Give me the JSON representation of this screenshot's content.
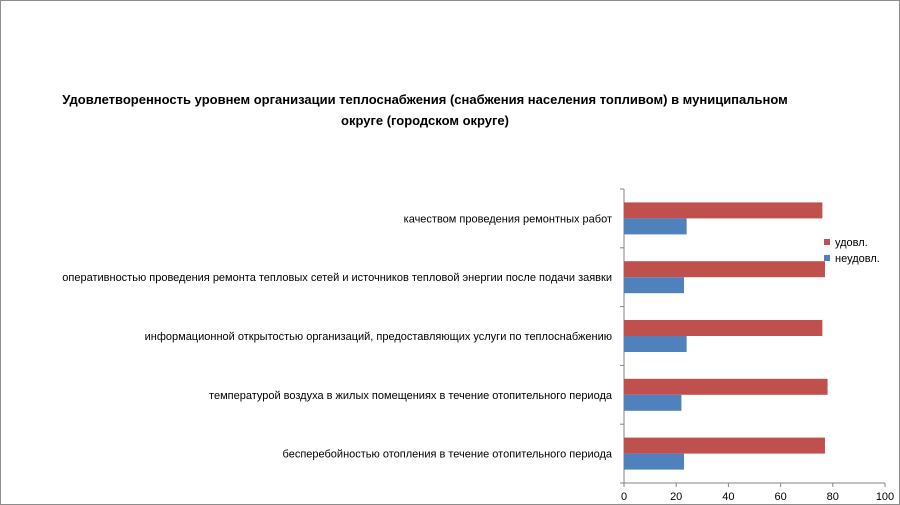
{
  "chart_data": {
    "type": "bar",
    "orientation": "horizontal",
    "title": "Удовлетворенность уровнем организации теплоснабжения (снабжения населения топливом) в муниципальном округе (городском округе)",
    "categories": [
      "качеством проведения ремонтных работ",
      "оперативностью проведения ремонта тепловых сетей и источников тепловой энергии после подачи заявки",
      "информационной открытостью организаций, предоставляющих услуги по теплоснабжению",
      "температурой воздуха в жилых помещениях в течение отопительного периода",
      "бесперебойностью отопления в течение отопительного периода"
    ],
    "series": [
      {
        "name": "удовл.",
        "color": "#c0504d",
        "values": [
          76,
          77,
          76,
          78,
          77
        ]
      },
      {
        "name": "неудовл.",
        "color": "#4f81bd",
        "values": [
          24,
          23,
          24,
          22,
          23
        ]
      }
    ],
    "xlim": [
      0,
      100
    ],
    "xticks": [
      0,
      20,
      40,
      60,
      80,
      100
    ],
    "grid": false,
    "legend_position": "right"
  }
}
